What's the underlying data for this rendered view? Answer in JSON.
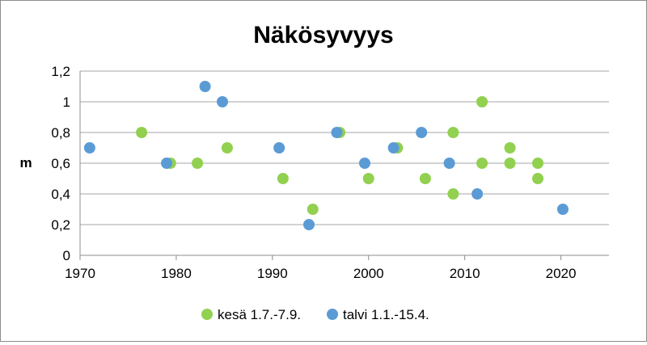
{
  "chart_data": {
    "type": "scatter",
    "title": "Näkösyvyys",
    "xlabel": "",
    "ylabel": "m",
    "xlim": [
      1970,
      2025
    ],
    "ylim": [
      0,
      1.2
    ],
    "x_ticks": [
      "1970",
      "1980",
      "1990",
      "2000",
      "2010",
      "2020"
    ],
    "x_tick_values": [
      1970,
      1980,
      1990,
      2000,
      2010,
      2020
    ],
    "y_ticks": [
      "0",
      "0,2",
      "0,4",
      "0,6",
      "0,8",
      "1",
      "1,2"
    ],
    "y_tick_values": [
      0,
      0.2,
      0.4,
      0.6,
      0.8,
      1.0,
      1.2
    ],
    "grid": "horizontal",
    "legend_position": "bottom",
    "series": [
      {
        "name": "kesä 1.7.-7.9.",
        "color": "#92d050",
        "points": [
          [
            1976.4,
            0.8
          ],
          [
            1979.4,
            0.6
          ],
          [
            1982.2,
            0.6
          ],
          [
            1985.3,
            0.7
          ],
          [
            1991.1,
            0.5
          ],
          [
            1994.2,
            0.3
          ],
          [
            1997.0,
            0.8
          ],
          [
            2000.0,
            0.5
          ],
          [
            2003.0,
            0.7
          ],
          [
            2005.9,
            0.5
          ],
          [
            2008.8,
            0.8
          ],
          [
            2008.8,
            0.4
          ],
          [
            2011.8,
            1.0
          ],
          [
            2011.8,
            0.6
          ],
          [
            2014.7,
            0.7
          ],
          [
            2014.7,
            0.6
          ],
          [
            2017.6,
            0.6
          ],
          [
            2017.6,
            0.5
          ]
        ]
      },
      {
        "name": "talvi 1.1.-15.4.",
        "color": "#5b9bd5",
        "points": [
          [
            1971.0,
            0.7
          ],
          [
            1979.0,
            0.6
          ],
          [
            1983.0,
            1.1
          ],
          [
            1984.8,
            1.0
          ],
          [
            1990.7,
            0.7
          ],
          [
            1993.8,
            0.2
          ],
          [
            1996.7,
            0.8
          ],
          [
            1999.6,
            0.6
          ],
          [
            2002.6,
            0.7
          ],
          [
            2005.5,
            0.8
          ],
          [
            2008.4,
            0.6
          ],
          [
            2011.3,
            0.4
          ],
          [
            2020.2,
            0.3
          ]
        ]
      }
    ]
  }
}
